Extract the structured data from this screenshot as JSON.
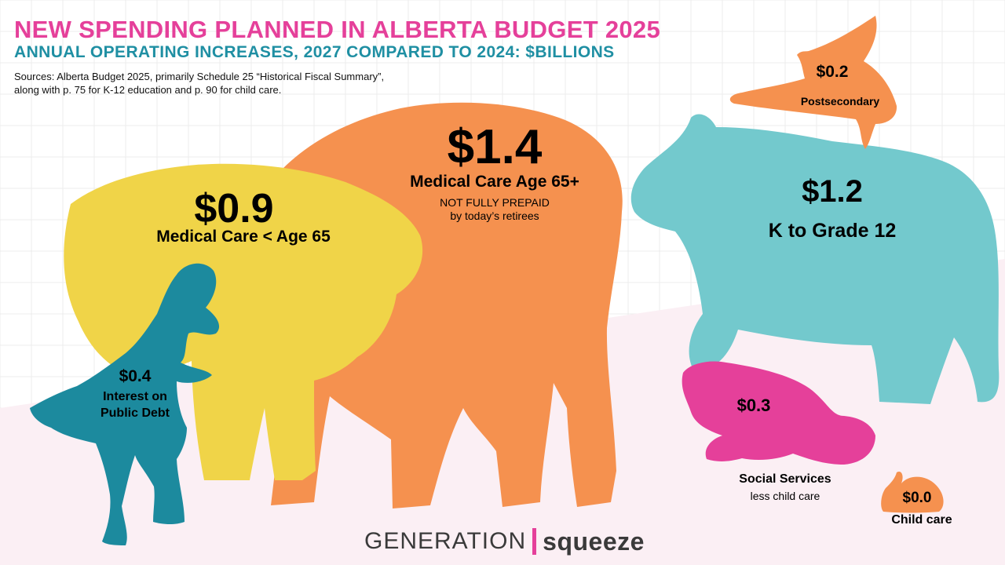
{
  "header": {
    "title": "NEW SPENDING PLANNED IN ALBERTA BUDGET 2025",
    "subtitle": "ANNUAL OPERATING INCREASES, 2027 COMPARED TO 2024: $BILLIONS",
    "source_line1": "Sources: Alberta Budget 2025, primarily Schedule 25 “Historical Fiscal Summary”,",
    "source_line2": "along with p. 75 for K-12 education and p. 90 for child care."
  },
  "colors": {
    "title": "#e5409a",
    "subtitle": "#1f8fa3",
    "elephant_yellow": "#f0d448",
    "elephant_orange": "#f5914f",
    "bear": "#73c9cd",
    "bird": "#f5914f",
    "beaver": "#e5409a",
    "snail": "#f5914f",
    "dinosaur": "#1c8a9e",
    "grid": "#ececec",
    "ground": "#fbeff4"
  },
  "chart_data": {
    "type": "pictorial",
    "unit": "$ billions",
    "categories": [
      {
        "value_label": "$1.4",
        "value": 1.4,
        "label": "Medical Care Age 65+",
        "note1": "NOT FULLY PREPAID",
        "note2": "by today’s retirees",
        "shape": "elephant"
      },
      {
        "value_label": "$1.2",
        "value": 1.2,
        "label": "K to Grade 12",
        "shape": "bear"
      },
      {
        "value_label": "$0.9",
        "value": 0.9,
        "label": "Medical Care < Age 65",
        "shape": "elephant"
      },
      {
        "value_label": "$0.4",
        "value": 0.4,
        "label_line1": "Interest on",
        "label_line2": "Public Debt",
        "shape": "dinosaur"
      },
      {
        "value_label": "$0.3",
        "value": 0.3,
        "label": "Social Services",
        "note1": "less child care",
        "shape": "beaver"
      },
      {
        "value_label": "$0.2",
        "value": 0.2,
        "label": "Postsecondary",
        "shape": "bird"
      },
      {
        "value_label": "$0.0",
        "value": 0.0,
        "label": "Child care",
        "shape": "snail"
      }
    ]
  },
  "logo": {
    "part1": "GENERATION",
    "part2": "squeeze",
    "bar_color": "#e5409a"
  }
}
